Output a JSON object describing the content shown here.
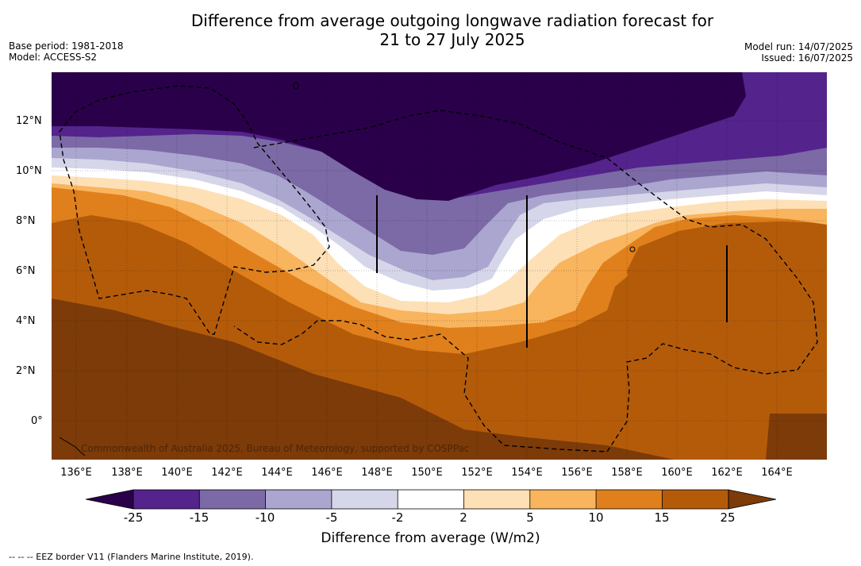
{
  "title_line1": "Difference from average outgoing longwave radiation forecast for",
  "title_line2": "21 to 27 July 2025",
  "base_period": "Base period: 1981-2018",
  "model": "Model: ACCESS-S2",
  "model_run": "Model run: 14/07/2025",
  "issued": "Issued: 16/07/2025",
  "credit": "Commonwealth of Australia 2025, Bureau of Meteorology, supported by COSPPac",
  "lat_labels": [
    "12°N",
    "10°N",
    "8°N",
    "6°N",
    "4°N",
    "2°N",
    "0°"
  ],
  "lon_labels": [
    "136°E",
    "138°E",
    "140°E",
    "142°E",
    "144°E",
    "146°E",
    "148°E",
    "150°E",
    "152°E",
    "154°E",
    "156°E",
    "158°E",
    "160°E",
    "162°E",
    "164°E"
  ],
  "colorbar": {
    "ticks": [
      "-25",
      "-15",
      "-10",
      "-5",
      "-2",
      "2",
      "5",
      "10",
      "15",
      "25"
    ],
    "label": "Difference from average (W/m2)",
    "colors": [
      "#2a004a",
      "#54238c",
      "#7b6aa6",
      "#aba6cf",
      "#d6d6ea",
      "#ffffff",
      "#fde0b6",
      "#f9b45e",
      "#e0801c",
      "#b45b0a",
      "#7c3b08"
    ]
  },
  "footnote": "-- -- -- EEZ border V11 (Flanders Marine Institute, 2019)."
}
